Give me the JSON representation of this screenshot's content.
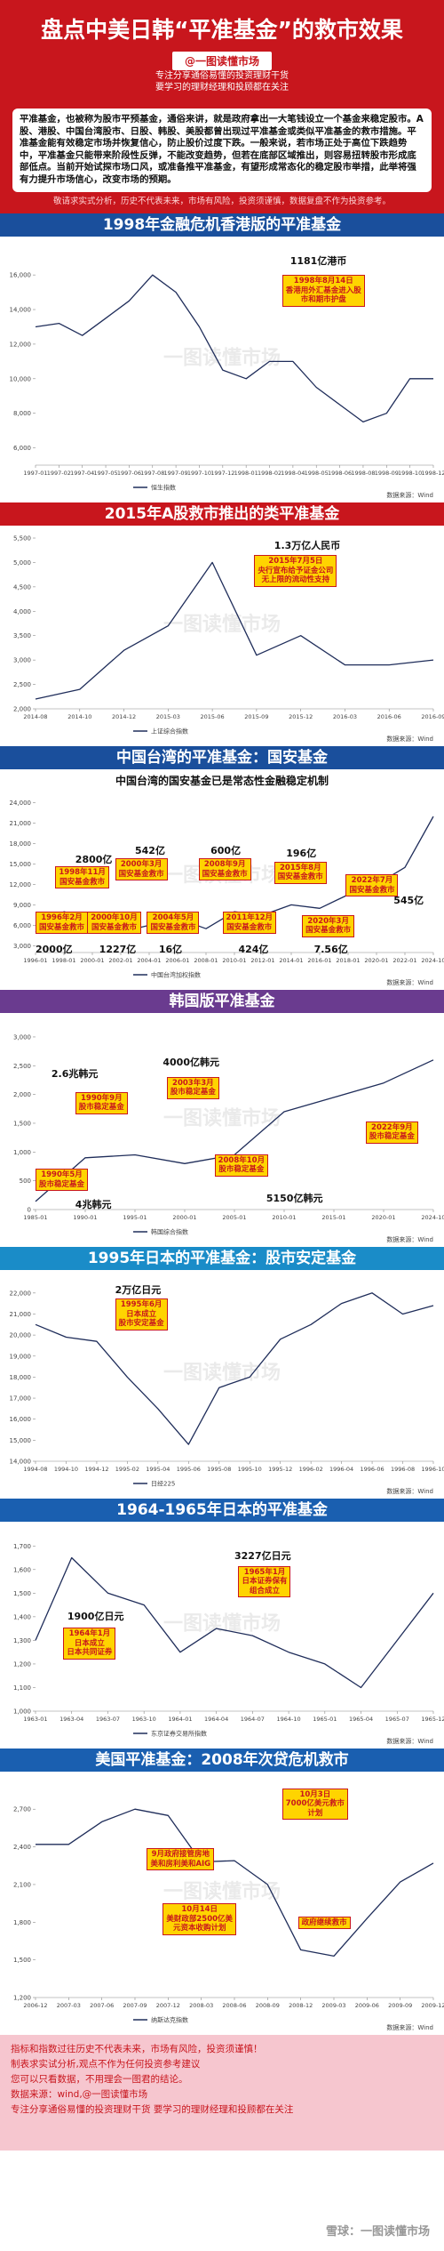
{
  "header": {
    "title": "盘点中美日韩“平准基金”的救市效果",
    "handle": "@一图读懂市场",
    "subtitle": [
      "专注分享通俗易懂的投资理财干货",
      "要学习的理财经理和投顾都在关注"
    ]
  },
  "intro": {
    "text": "平准基金，也被称为股市平预基金，通俗来讲，就是政府拿出一大笔钱设立一个基金来稳定股市。A股、港股、中国台湾股市、日股、韩股、美股都曾出现过平准基金或类似平准基金的救市措施。平准基金能有效稳定市场并恢复信心，防止股价过度下跌。一般来说，若市场正处于高位下跌趋势中，平准基金只能带来阶段性反弹，不能改变趋势，但若在底部区域推出，则容易扭转股市形成底部低点。当前开始试探市场口风，或准备推平准基金，有望形成常态化的稳定股市举措，此举将强有力提升市场信心，改变市场的预期。",
    "disclaimer": "敬请求实式分析，历史不代表未来，市场有风险，投资须谨慎，数据复盘不作为投资参考。"
  },
  "watermark": "一图读懂市场",
  "chart_data": [
    {
      "type": "line",
      "title": "1998年金融危机香港版的平准基金",
      "banner_color": "#1a4f9c",
      "categories": [
        "1997-01",
        "1997-02",
        "1997-04",
        "1997-05",
        "1997-06",
        "1997-08",
        "1997-09",
        "1997-10",
        "1997-12",
        "1998-01",
        "1998-02",
        "1998-04",
        "1998-05",
        "1998-06",
        "1998-08",
        "1998-09",
        "1998-10",
        "1998-12"
      ],
      "series": [
        {
          "name": "恒生指数",
          "color": "#1f2d5a",
          "values": [
            13000,
            13200,
            12500,
            13500,
            14500,
            16000,
            15000,
            13000,
            10500,
            10000,
            11000,
            11000,
            9500,
            8500,
            7500,
            8000,
            10000,
            10000
          ]
        }
      ],
      "ylim": [
        5000,
        17500
      ],
      "yticks": [
        {
          "value": 6000,
          "label": "6,000"
        },
        {
          "value": 8000,
          "label": "8,000"
        },
        {
          "value": 10000,
          "label": "10,000"
        },
        {
          "value": 12000,
          "label": "12,000"
        },
        {
          "value": 14000,
          "label": "14,000"
        },
        {
          "value": 16000,
          "label": "16,000"
        }
      ],
      "annotations": [
        {
          "lines": [
            "1181亿港币"
          ]
        },
        {
          "lines": [
            "1998年8月14日",
            "香港用外汇基金进入股",
            "市和期市护盘"
          ]
        }
      ],
      "source": "数据来源：Wind"
    },
    {
      "type": "line",
      "title": "2015年A股救市推出的类平准基金",
      "banner_color": "#c8161d",
      "categories": [
        "2014-08",
        "2014-10",
        "2014-12",
        "2015-03",
        "2015-06",
        "2015-09",
        "2015-12",
        "2016-03",
        "2016-06",
        "2016-09"
      ],
      "series": [
        {
          "name": "上证综合指数",
          "color": "#1f2d5a",
          "values": [
            2200,
            2400,
            3200,
            3700,
            5000,
            3100,
            3500,
            2900,
            2900,
            3000
          ]
        }
      ],
      "ylim": [
        2000,
        5500
      ],
      "yticks": [
        {
          "value": 2000,
          "label": "2,000"
        },
        {
          "value": 2500,
          "label": "2,500"
        },
        {
          "value": 3000,
          "label": "3,000"
        },
        {
          "value": 3500,
          "label": "3,500"
        },
        {
          "value": 4000,
          "label": "4,000"
        },
        {
          "value": 4500,
          "label": "4,500"
        },
        {
          "value": 5000,
          "label": "5,000"
        },
        {
          "value": 5500,
          "label": "5,500"
        }
      ],
      "annotations": [
        {
          "lines": [
            "1.3万亿人民币"
          ]
        },
        {
          "lines": [
            "2015年7月5日",
            "央行宣布给予证金公司",
            "无上限的流动性支持"
          ]
        }
      ],
      "source": "数据来源：Wind"
    },
    {
      "type": "line",
      "title": "中国台湾的平准基金：国安基金",
      "banner_color": "#1a4f9c",
      "subtitle": "中国台湾的国安基金已是常态性金融稳定机制",
      "categories": [
        "1996-01",
        "1998-01",
        "2000-01",
        "2002-01",
        "2004-01",
        "2006-01",
        "2008-01",
        "2010-01",
        "2012-01",
        "2014-01",
        "2016-01",
        "2018-01",
        "2020-01",
        "2022-01",
        "2024-10"
      ],
      "series": [
        {
          "name": "中国台湾加权指数",
          "color": "#1f2d5a",
          "values": [
            5000,
            8000,
            7000,
            5000,
            6000,
            7000,
            5500,
            8000,
            7500,
            9000,
            8500,
            10500,
            12000,
            14500,
            22000
          ]
        }
      ],
      "ylim": [
        2000,
        25000
      ],
      "yticks": [
        {
          "value": 3000,
          "label": "3,000"
        },
        {
          "value": 6000,
          "label": "6,000"
        },
        {
          "value": 9000,
          "label": "9,000"
        },
        {
          "value": 12000,
          "label": "12,000"
        },
        {
          "value": 15000,
          "label": "15,000"
        },
        {
          "value": 18000,
          "label": "18,000"
        },
        {
          "value": 21000,
          "label": "21,000"
        },
        {
          "value": 24000,
          "label": "24,000"
        }
      ],
      "annotations": [
        {
          "lines": [
            "2800亿"
          ]
        },
        {
          "lines": [
            "1998年11月",
            "国安基金救市"
          ]
        },
        {
          "lines": [
            "542亿"
          ]
        },
        {
          "lines": [
            "2000年3月",
            "国安基金救市"
          ]
        },
        {
          "lines": [
            "600亿"
          ]
        },
        {
          "lines": [
            "2008年9月",
            "国安基金救市"
          ]
        },
        {
          "lines": [
            "196亿"
          ]
        },
        {
          "lines": [
            "2015年8月",
            "国安基金救市"
          ]
        },
        {
          "lines": [
            "2022年7月",
            "国安基金救市"
          ]
        },
        {
          "lines": [
            "545亿"
          ]
        },
        {
          "lines": [
            "1996年2月",
            "国安基金救市"
          ]
        },
        {
          "lines": [
            "2000亿"
          ]
        },
        {
          "lines": [
            "2000年10月",
            "国安基金救市"
          ]
        },
        {
          "lines": [
            "1227亿"
          ]
        },
        {
          "lines": [
            "2004年5月",
            "国安基金救市"
          ]
        },
        {
          "lines": [
            "16亿"
          ]
        },
        {
          "lines": [
            "2011年12月",
            "国安基金救市"
          ]
        },
        {
          "lines": [
            "424亿"
          ]
        },
        {
          "lines": [
            "2020年3月",
            "国安基金救市"
          ]
        },
        {
          "lines": [
            "7.56亿"
          ]
        }
      ],
      "source": "数据来源：Wind"
    },
    {
      "type": "line",
      "title": "韩国版平准基金",
      "banner_color": "#6a3b8f",
      "categories": [
        "1985-01",
        "1990-01",
        "1995-01",
        "2000-01",
        "2005-01",
        "2010-01",
        "2015-01",
        "2020-01",
        "2024-10"
      ],
      "series": [
        {
          "name": "韩国综合指数",
          "color": "#1f2d5a",
          "values": [
            140,
            900,
            950,
            800,
            950,
            1700,
            1950,
            2200,
            2600
          ]
        }
      ],
      "ylim": [
        0,
        3200
      ],
      "yticks": [
        0,
        500,
        {
          "value": 1000,
          "label": "1,000"
        },
        {
          "value": 1500,
          "label": "1,500"
        },
        {
          "value": 2000,
          "label": "2,000"
        },
        {
          "value": 2500,
          "label": "2,500"
        },
        {
          "value": 3000,
          "label": "3,000"
        }
      ],
      "annotations": [
        {
          "lines": [
            "2.6兆韩元"
          ]
        },
        {
          "lines": [
            "1990年9月",
            "股市稳定基金"
          ]
        },
        {
          "lines": [
            "1990年5月",
            "股市稳定基金"
          ]
        },
        {
          "lines": [
            "4兆韩元"
          ]
        },
        {
          "lines": [
            "4000亿韩元"
          ]
        },
        {
          "lines": [
            "2003年3月",
            "股市稳定基金"
          ]
        },
        {
          "lines": [
            "2008年10月",
            "股市稳定基金"
          ]
        },
        {
          "lines": [
            "5150亿韩元"
          ]
        },
        {
          "lines": [
            "2022年9月",
            "股市稳定基金"
          ]
        }
      ],
      "source": "数据来源：Wind"
    },
    {
      "type": "line",
      "title": "1995年日本的平准基金：股市安定基金",
      "banner_color": "#1a8cc8",
      "categories": [
        "1994-08",
        "1994-10",
        "1994-12",
        "1995-02",
        "1995-04",
        "1995-06",
        "1995-08",
        "1995-10",
        "1995-12",
        "1996-02",
        "1996-04",
        "1996-06",
        "1996-08",
        "1996-10"
      ],
      "series": [
        {
          "name": "日经225",
          "color": "#1f2d5a",
          "values": [
            20500,
            19900,
            19700,
            18000,
            16500,
            14800,
            17500,
            18000,
            19800,
            20500,
            21500,
            22000,
            21000,
            21400
          ]
        }
      ],
      "ylim": [
        14000,
        22500
      ],
      "yticks": [
        {
          "value": 14000,
          "label": "14,000"
        },
        {
          "value": 15000,
          "label": "15,000"
        },
        {
          "value": 16000,
          "label": "16,000"
        },
        {
          "value": 17000,
          "label": "17,000"
        },
        {
          "value": 18000,
          "label": "18,000"
        },
        {
          "value": 19000,
          "label": "19,000"
        },
        {
          "value": 20000,
          "label": "20,000"
        },
        {
          "value": 21000,
          "label": "21,000"
        },
        {
          "value": 22000,
          "label": "22,000"
        }
      ],
      "annotations": [
        {
          "lines": [
            "2万亿日元"
          ]
        },
        {
          "lines": [
            "1995年6月",
            "日本成立",
            "股市安定基金"
          ]
        }
      ],
      "source": "数据来源：Wind"
    },
    {
      "type": "line",
      "title": "1964-1965年日本的平准基金",
      "banner_color": "#1a5fb0",
      "categories": [
        "1963-01",
        "1963-04",
        "1963-07",
        "1963-10",
        "1964-01",
        "1964-04",
        "1964-07",
        "1964-10",
        "1965-01",
        "1965-04",
        "1965-07",
        "1965-12"
      ],
      "series": [
        {
          "name": "东京证券交易所指数",
          "color": "#1f2d5a",
          "values": [
            1300,
            1650,
            1500,
            1450,
            1250,
            1350,
            1320,
            1250,
            1200,
            1100,
            1300,
            1500
          ]
        }
      ],
      "ylim": [
        1000,
        1750
      ],
      "yticks": [
        {
          "value": 1000,
          "label": "1,000"
        },
        {
          "value": 1100,
          "label": "1,100"
        },
        {
          "value": 1200,
          "label": "1,200"
        },
        {
          "value": 1300,
          "label": "1,300"
        },
        {
          "value": 1400,
          "label": "1,400"
        },
        {
          "value": 1500,
          "label": "1,500"
        },
        {
          "value": 1600,
          "label": "1,600"
        },
        {
          "value": 1700,
          "label": "1,700"
        }
      ],
      "annotations": [
        {
          "lines": [
            "1900亿日元"
          ]
        },
        {
          "lines": [
            "1964年1月",
            "日本成立",
            "日本共同证券"
          ]
        },
        {
          "lines": [
            "3227亿日元"
          ]
        },
        {
          "lines": [
            "1965年1月",
            "日本证券保有",
            "组合成立"
          ]
        }
      ],
      "source": "数据来源：Wind"
    },
    {
      "type": "line",
      "title": "美国平准基金：2008年次贷危机救市",
      "banner_color": "#1a5fb0",
      "categories": [
        "2006-12",
        "2007-03",
        "2007-06",
        "2007-09",
        "2007-12",
        "2008-03",
        "2008-06",
        "2008-09",
        "2008-12",
        "2009-03",
        "2009-06",
        "2009-09",
        "2009-12"
      ],
      "series": [
        {
          "name": "纳斯达克指数",
          "color": "#1f2d5a",
          "values": [
            2420,
            2420,
            2600,
            2700,
            2650,
            2280,
            2290,
            2100,
            1580,
            1530,
            1830,
            2120,
            2270
          ]
        }
      ],
      "ylim": [
        1200,
        2900
      ],
      "yticks": [
        {
          "value": 1200,
          "label": "1,200"
        },
        {
          "value": 1500,
          "label": "1,500"
        },
        {
          "value": 1800,
          "label": "1,800"
        },
        {
          "value": 2100,
          "label": "2,100"
        },
        {
          "value": 2400,
          "label": "2,400"
        },
        {
          "value": 2700,
          "label": "2,700"
        }
      ],
      "annotations": [
        {
          "lines": [
            "10月3日",
            "7000亿美元救市",
            "计划"
          ]
        },
        {
          "lines": [
            "9月政府接管房地",
            "美和房利美和AIG"
          ]
        },
        {
          "lines": [
            "10月14日",
            "美财政部2500亿美",
            "元资本收购计划"
          ]
        },
        {
          "lines": [
            "政府继续救市"
          ]
        }
      ],
      "source": "数据来源：Wind"
    }
  ],
  "footer": {
    "lines": [
      "指标和指数过往历史不代表未来，市场有风险，投资须谨慎！",
      "制表求实试分析,观点不作为任何投资参考建议",
      "您可以只看数据，不用理会一图君的结论。",
      "数据来源：wind,@一图读懂市场",
      "专注分享通俗易懂的投资理财干货    要学习的理财经理和投顾都在关注"
    ]
  },
  "signature": "雪球：一图读懂市场"
}
